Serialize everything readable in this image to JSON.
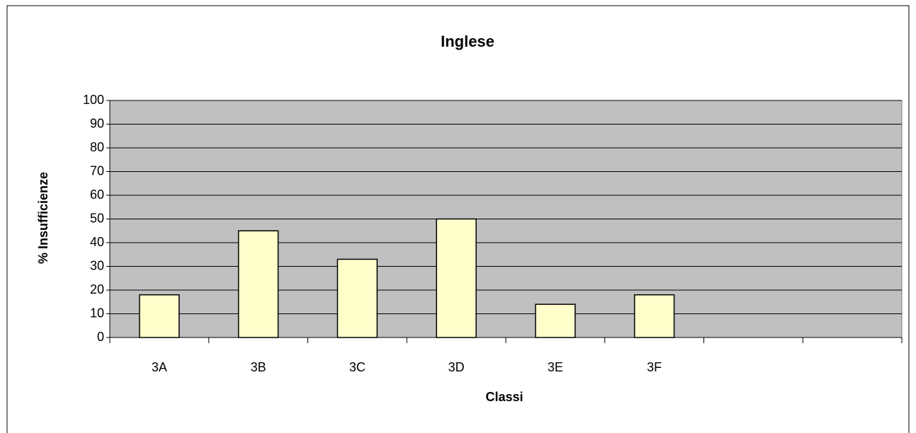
{
  "chart_data": {
    "type": "bar",
    "title": "Inglese",
    "x_label": "Classi",
    "y_label": "% Insufficienze",
    "categories": [
      "3A",
      "3B",
      "3C",
      "3D",
      "3E",
      "3F",
      null,
      null
    ],
    "values": [
      18,
      45,
      33,
      50,
      14,
      18,
      null,
      null
    ],
    "color": "#ffffcc",
    "ylim": [
      0,
      100
    ],
    "yticks": [
      0,
      10,
      20,
      30,
      40,
      50,
      60,
      70,
      80,
      90,
      100
    ],
    "grid": true
  }
}
